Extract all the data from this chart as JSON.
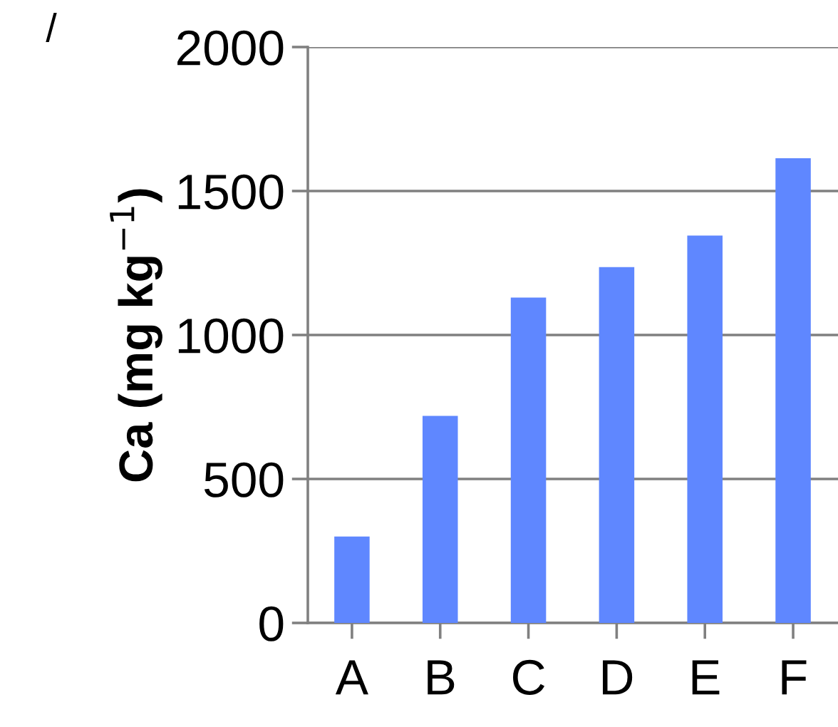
{
  "chart_data": {
    "type": "bar",
    "ylabel": "Ca (mg kg$^{−1}$)",
    "categories": [
      "A",
      "B",
      "C",
      "D",
      "E",
      "F"
    ],
    "values": [
      300,
      719,
      1130,
      1236,
      1345,
      1614
    ],
    "color": "#5f87ff",
    "ylim": [
      0,
      2000
    ],
    "yticks": [
      0,
      500,
      1000,
      1500,
      2000
    ],
    "grid": "y",
    "legend": false,
    "annotations": [
      "/"
    ]
  }
}
